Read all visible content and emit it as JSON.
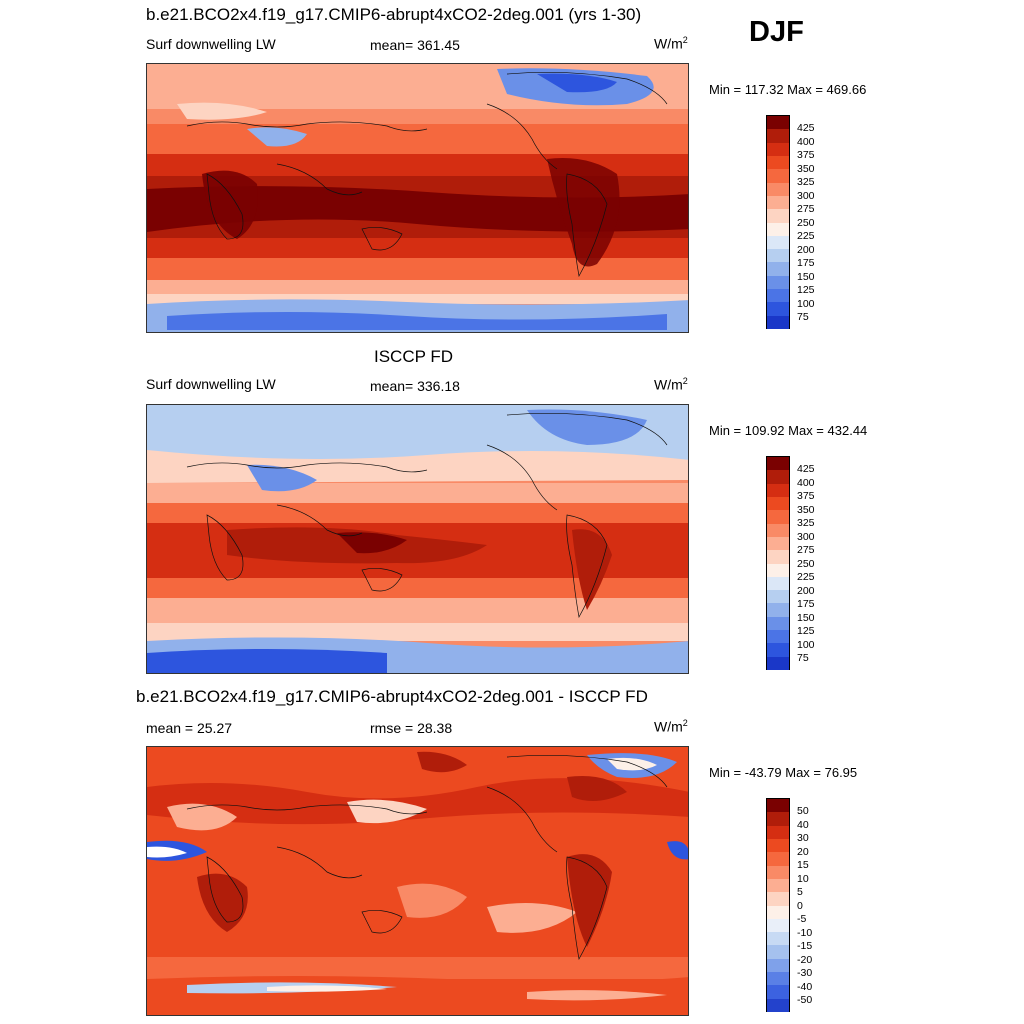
{
  "season": "DJF",
  "palette_abs": [
    "#7a0101",
    "#b01d0a",
    "#d52e12",
    "#ec4a20",
    "#f5683e",
    "#f98a66",
    "#fcae92",
    "#fdd4c2",
    "#fdf0e8",
    "#dbe7f7",
    "#b6cff0",
    "#91b1eb",
    "#6a90e8",
    "#4b74e6",
    "#2d55de",
    "#1a37c8",
    "#0b1d9d",
    "#020b74"
  ],
  "palette_diff": [
    "#7a0101",
    "#b01d0a",
    "#d52e12",
    "#ec4a20",
    "#f5683e",
    "#f98a66",
    "#fcae92",
    "#fdd4c2",
    "#fdf0e8",
    "#e9eff9",
    "#c7daf4",
    "#a5c1ee",
    "#7fa1ea",
    "#5a80e6",
    "#3c62e0",
    "#2342cc",
    "#0c219e",
    "#020b74"
  ],
  "panels": [
    {
      "title": "b.e21.BCO2x4.f19_g17.CMIP6-abrupt4xCO2-2deg.001 (yrs 1-30)",
      "left_label": "Surf downwelling LW",
      "center_label": "mean= 361.45",
      "units_base": "W/m",
      "units_sup": "2",
      "minmax": "Min = 117.32 Max = 469.66",
      "colorbar_labels": [
        "425",
        "400",
        "375",
        "350",
        "325",
        "300",
        "275",
        "250",
        "225",
        "200",
        "175",
        "150",
        "125",
        "100",
        "75"
      ]
    },
    {
      "title": "ISCCP FD",
      "left_label": "Surf downwelling LW",
      "center_label": "mean= 336.18",
      "units_base": "W/m",
      "units_sup": "2",
      "minmax": "Min = 109.92 Max = 432.44",
      "colorbar_labels": [
        "425",
        "400",
        "375",
        "350",
        "325",
        "300",
        "275",
        "250",
        "225",
        "200",
        "175",
        "150",
        "125",
        "100",
        "75"
      ]
    },
    {
      "title": "b.e21.BCO2x4.f19_g17.CMIP6-abrupt4xCO2-2deg.001 - ISCCP FD",
      "left_label": "mean =  25.27",
      "center_label": "rmse =  28.38",
      "units_base": "W/m",
      "units_sup": "2",
      "minmax": "Min = -43.79 Max =  76.95",
      "colorbar_labels": [
        "50",
        "40",
        "30",
        "20",
        "15",
        "10",
        "5",
        "0",
        "-5",
        "-10",
        "-15",
        "-20",
        "-30",
        "-40",
        "-50"
      ]
    }
  ]
}
